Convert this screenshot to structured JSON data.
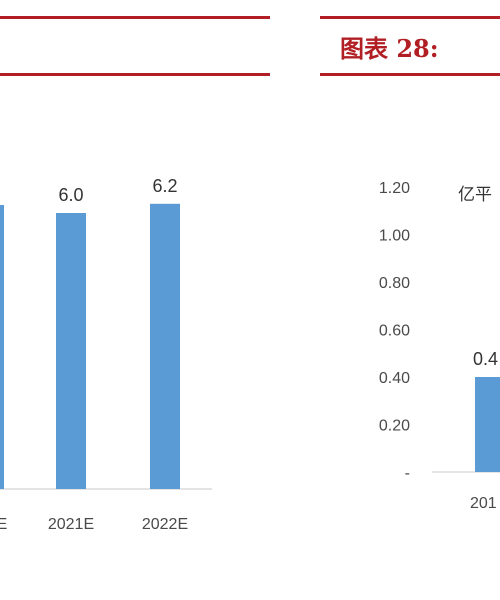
{
  "figure": {
    "title": "图表 28: "
  },
  "chart_data": [
    {
      "type": "bar",
      "categories": [
        "E",
        "2021E",
        "2022E"
      ],
      "values": [
        null,
        6.0,
        6.2
      ],
      "value_labels": [
        "",
        "6.0",
        "6.2"
      ],
      "color": "#5b9bd5"
    },
    {
      "type": "bar",
      "unit_label": "亿平",
      "yticks": [
        "1.20",
        "1.00",
        "0.80",
        "0.60",
        "0.40",
        "0.20",
        "-"
      ],
      "ylim": [
        0,
        1.2
      ],
      "categories": [
        "201"
      ],
      "values": [
        0.4
      ],
      "value_labels": [
        "0.4"
      ],
      "color": "#5b9bd5"
    }
  ]
}
